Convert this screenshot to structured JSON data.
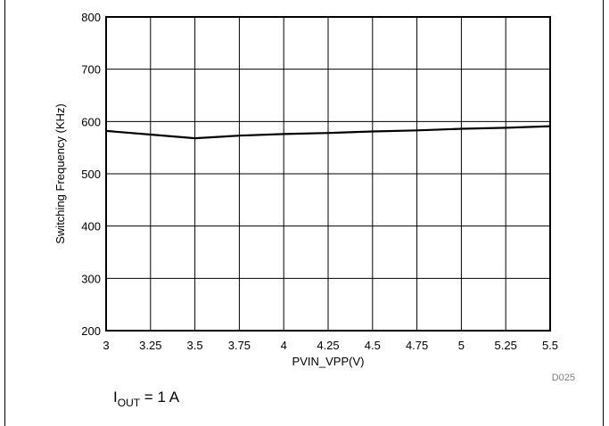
{
  "chart_data": {
    "type": "line",
    "xlabel": "PVIN_VPP(V)",
    "ylabel": "Switching Frequency (KHz)",
    "xlim": [
      3,
      5.5
    ],
    "ylim": [
      200,
      800
    ],
    "x_ticks": [
      "3",
      "3.25",
      "3.5",
      "3.75",
      "4",
      "4.25",
      "4.5",
      "4.75",
      "5",
      "5.25",
      "5.5"
    ],
    "y_ticks": [
      "200",
      "300",
      "400",
      "500",
      "600",
      "700",
      "800"
    ],
    "grid": true,
    "series": [
      {
        "x": [
          3,
          3.25,
          3.5,
          3.75,
          4,
          4.25,
          4.5,
          4.75,
          5,
          5.25,
          5.5
        ],
        "y": [
          582,
          575,
          568,
          573,
          576,
          578,
          581,
          583,
          586,
          588,
          591
        ]
      }
    ],
    "figure_code": "D025",
    "condition": {
      "main": "I",
      "subscript": "OUT",
      "rest": " = 1 A"
    }
  }
}
